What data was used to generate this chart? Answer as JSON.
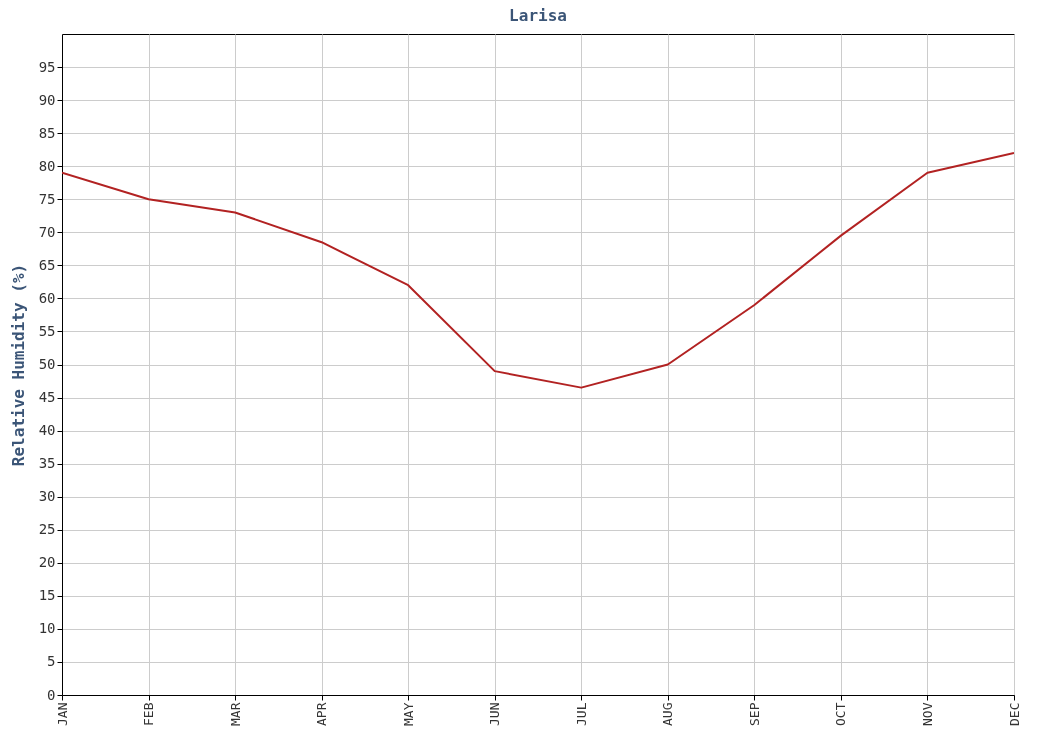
{
  "chart_data": {
    "type": "line",
    "title": "Larisa",
    "ylabel": "Relative Humidity (%)",
    "categories": [
      "JAN",
      "FEB",
      "MAR",
      "APR",
      "MAY",
      "JUN",
      "JUL",
      "AUG",
      "SEP",
      "OCT",
      "NOV",
      "DEC"
    ],
    "series": [
      {
        "color": "#b22222",
        "values": [
          79,
          75,
          73,
          68.5,
          62,
          49,
          46.5,
          50,
          59,
          69.5,
          79,
          82
        ]
      }
    ],
    "ylim": [
      0,
      100
    ],
    "yticks": [
      0,
      5,
      10,
      15,
      20,
      25,
      30,
      35,
      40,
      45,
      50,
      55,
      60,
      65,
      70,
      75,
      80,
      85,
      90,
      95
    ],
    "grid": true,
    "legend": false,
    "marker": "none",
    "line_style": "solid"
  }
}
